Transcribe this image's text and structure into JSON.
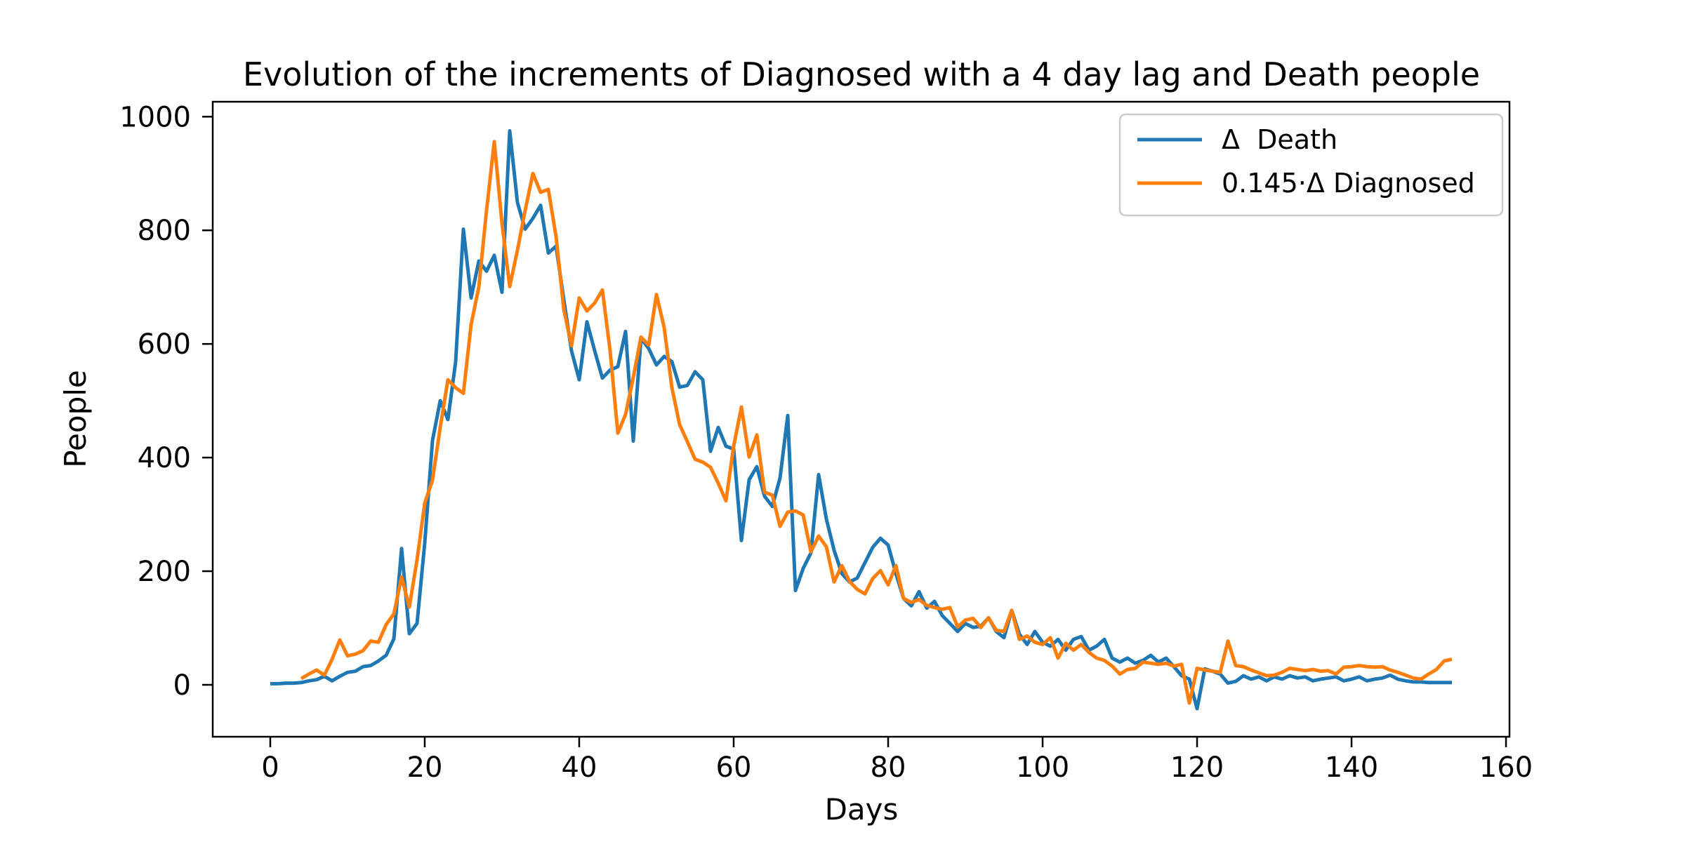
{
  "chart_data": {
    "type": "line",
    "title": "Evolution of the increments of Diagnosed with a 4 day lag and Death people",
    "xlabel": "Days",
    "ylabel": "People",
    "x_ticks": [
      0,
      20,
      40,
      60,
      80,
      100,
      120,
      140,
      160
    ],
    "y_ticks": [
      0,
      200,
      400,
      600,
      800,
      1000
    ],
    "xlim": [
      -7.45,
      160.45
    ],
    "ylim": [
      -91.4,
      1026.3
    ],
    "grid": false,
    "legend_position": "upper right",
    "background_color": "#ffffff",
    "spine_color": "#000000",
    "series": [
      {
        "name": "Δ  Death",
        "color": "#1f77b4",
        "start_day": 0,
        "values": [
          2,
          2,
          3,
          3,
          4,
          7,
          9,
          15,
          7,
          15,
          22,
          24,
          32,
          34,
          42,
          52,
          81,
          240,
          90,
          108,
          250,
          430,
          500,
          467,
          569,
          802,
          681,
          746,
          728,
          756,
          691,
          975,
          849,
          802,
          821,
          844,
          760,
          772,
          678,
          588,
          537,
          639,
          588,
          540,
          554,
          560,
          622,
          429,
          610,
          592,
          563,
          578,
          569,
          524,
          527,
          551,
          537,
          411,
          453,
          420,
          415,
          254,
          361,
          384,
          332,
          314,
          364,
          474,
          166,
          205,
          232,
          370,
          292,
          237,
          196,
          181,
          188,
          215,
          242,
          258,
          246,
          196,
          152,
          139,
          164,
          135,
          147,
          122,
          108,
          94,
          108,
          101,
          103,
          118,
          94,
          83,
          131,
          89,
          71,
          94,
          75,
          68,
          80,
          61,
          80,
          85,
          61,
          68,
          80,
          47,
          40,
          47,
          38,
          43,
          52,
          40,
          47,
          32,
          16,
          10,
          -42,
          28,
          24,
          19,
          3,
          6,
          16,
          10,
          14,
          7,
          14,
          10,
          16,
          12,
          14,
          7,
          10,
          12,
          14,
          7,
          10,
          14,
          7,
          10,
          12,
          17,
          10,
          7,
          5,
          5,
          4,
          4,
          4,
          4
        ]
      },
      {
        "name": "0.145·Δ Diagnosed",
        "color": "#ff7f0e",
        "start_day": 4,
        "values": [
          11,
          19,
          26,
          17,
          45,
          79,
          51,
          54,
          60,
          77,
          75,
          106,
          125,
          190,
          137,
          220,
          320,
          360,
          453,
          537,
          523,
          513,
          634,
          700,
          835,
          956,
          812,
          701,
          765,
          835,
          900,
          867,
          872,
          789,
          661,
          597,
          681,
          658,
          672,
          695,
          588,
          443,
          476,
          541,
          612,
          598,
          687,
          629,
          523,
          458,
          428,
          397,
          392,
          383,
          355,
          324,
          420,
          489,
          401,
          440,
          339,
          334,
          279,
          304,
          306,
          299,
          234,
          262,
          243,
          181,
          210,
          182,
          168,
          160,
          187,
          201,
          176,
          210,
          152,
          145,
          150,
          140,
          136,
          133,
          136,
          102,
          114,
          117,
          101,
          118,
          96,
          94,
          131,
          80,
          86,
          75,
          71,
          83,
          47,
          73,
          61,
          71,
          57,
          47,
          43,
          33,
          19,
          27,
          29,
          40,
          38,
          36,
          38,
          33,
          36,
          -32,
          29,
          26,
          24,
          22,
          77,
          34,
          32,
          26,
          21,
          16,
          17,
          22,
          29,
          27,
          25,
          27,
          24,
          25,
          19,
          31,
          32,
          34,
          32,
          31,
          32,
          26,
          22,
          17,
          12,
          10,
          19,
          27,
          42,
          45
        ]
      }
    ]
  }
}
